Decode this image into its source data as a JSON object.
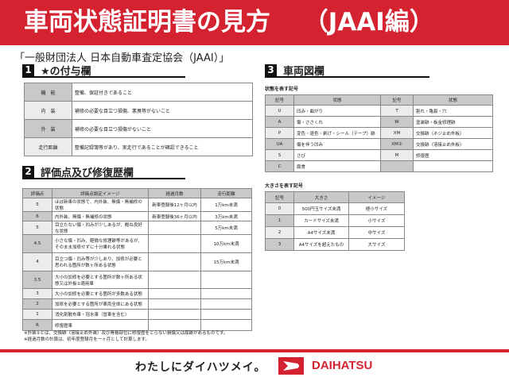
{
  "title": "車両状態証明書の見方　 （JAAI編）",
  "subtitle": "「一般財団法人 日本自動車査定協会（JAAI）」",
  "section1": {
    "num": "1",
    "title": "★の付与欄",
    "rows": [
      {
        "label": "機　能",
        "text": "整備、保証付きであること",
        "shade": "k2"
      },
      {
        "label": "内　装",
        "text": "補修の必要な目立つ損傷、悪臭等がないこと",
        "shade": "k1"
      },
      {
        "label": "外　装",
        "text": "補修の必要な目立つ損傷がないこと",
        "shade": "k2"
      },
      {
        "label": "走行距離",
        "text": "整備記録簿等があり、実走行であることが確認できること",
        "shade": "k1"
      }
    ]
  },
  "section2": {
    "num": "2",
    "title": "評価点及び修復歴欄",
    "headers": [
      "評価点",
      "評価点設定イメージ",
      "経過月数",
      "走行距離"
    ],
    "rows": [
      [
        "5",
        "ほぼ新車の状態で、内外装、無傷・無補修の状態",
        "新車登録後12ヶ月以内",
        "1万km未満"
      ],
      [
        "6",
        "内外装、無傷・無補修の状態",
        "新車登録後36ヶ月以内",
        "3万km未満"
      ],
      [
        "5",
        "目立たない傷・凹みが少しあるが、概ね良好な状態",
        "",
        "5万km未満"
      ],
      [
        "4.5",
        "小さな傷・凹み、軽微な修理跡等があるが、そのまま加修せずに十分乗れる状態",
        "",
        "10万km未満"
      ],
      [
        "4",
        "目立つ傷・凹み等が少しあり、加修が必要と思われる箇所が数ヶ所ある状態",
        "",
        "15万km未満"
      ],
      [
        "3.5",
        "大小の加修を必要とする箇所が数ヶ所ある状態又は外板②適用車",
        "",
        ""
      ],
      [
        "3",
        "大小の加修を必要とする箇所が多数ある状態",
        "",
        ""
      ],
      [
        "2",
        "加修を必要とする箇所が車両全体にある状態",
        "",
        ""
      ],
      [
        "1",
        "消化剤散布車・冠水車（冒車を含む）",
        "",
        ""
      ],
      [
        "R",
        "修復歴車",
        "",
        ""
      ]
    ]
  },
  "section3": {
    "num": "3",
    "title": "車両図欄",
    "caption1": "状態を表す記号",
    "headers1": [
      "記号",
      "状態",
      "記号",
      "状態"
    ],
    "rows1": [
      [
        "U",
        "凹み・曲がり",
        "T",
        "割れ・亀裂・穴"
      ],
      [
        "A",
        "傷・ささくれ",
        "W",
        "塗装跡・板金修理跡"
      ],
      [
        "P",
        "変色・退色・剥げ・シール（テープ）跡",
        "XM",
        "交換跡（ネジ止め外板）"
      ],
      [
        "UA",
        "傷を伴う凹み",
        "XM②",
        "交換跡（溶接止め外板）"
      ],
      [
        "S",
        "さび",
        "M",
        "修復歴"
      ],
      [
        "C",
        "腐食",
        "",
        ""
      ]
    ],
    "caption2": "大きさを表す記号",
    "headers2": [
      "記号",
      "大きさ",
      "イメージ"
    ],
    "rows2": [
      [
        "0",
        "500円玉サイズ未満",
        "極小サイズ"
      ],
      [
        "1",
        "カードサイズ未満",
        "小サイズ"
      ],
      [
        "2",
        "A4サイズ未満",
        "中サイズ"
      ],
      [
        "3",
        "A4サイズを超えたもの",
        "大サイズ"
      ]
    ]
  },
  "notes": [
    "※外装②とは、交換跡（溶接止め外装）及び骨格部位に修復歴をとらない損傷又は腐跡があるものです。",
    "※経過月数の計算は、初年度登録月を一ヶ月として計算します。"
  ],
  "footer": {
    "slogan": "わたしにダイハツメイ。",
    "brand": "DAIHATSU"
  },
  "colors": {
    "brand_red": "#d42230"
  }
}
